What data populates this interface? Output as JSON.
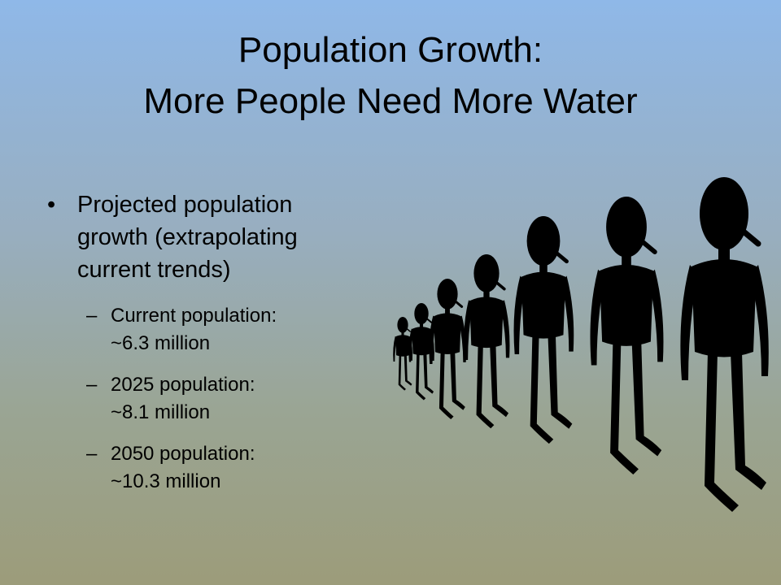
{
  "slide": {
    "title": [
      "Population Growth:",
      "More People Need More Water"
    ],
    "bullet": {
      "lines": [
        "Projected population",
        "growth (extrapolating",
        "current trends)"
      ],
      "items": [
        {
          "lines": [
            "Current population:",
            "~6.3 million"
          ]
        },
        {
          "lines": [
            "2025 population:",
            "~8.1 million"
          ]
        },
        {
          "lines": [
            "2050 population:",
            "~10.3 million"
          ]
        }
      ]
    }
  }
}
